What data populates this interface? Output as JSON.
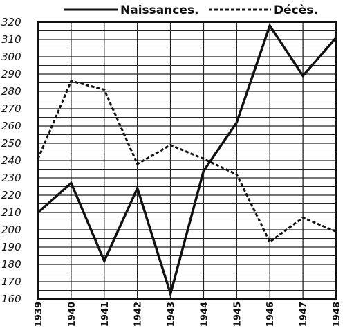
{
  "chart_data": {
    "type": "line",
    "x": [
      "1939",
      "1940",
      "1941",
      "1942",
      "1943",
      "1944",
      "1945",
      "1946",
      "1947",
      "1948"
    ],
    "series": [
      {
        "name": "Naissances.",
        "style": "solid",
        "values": [
          210,
          227,
          182,
          224,
          163,
          234,
          262,
          318,
          289,
          311
        ]
      },
      {
        "name": "Décès.",
        "style": "dashed",
        "values": [
          241,
          286,
          281,
          238,
          249,
          241,
          232,
          193,
          207,
          199
        ]
      }
    ],
    "ylim": [
      160,
      320
    ],
    "ytick_labels": [
      "160",
      "170",
      "180",
      "190",
      "200",
      "210",
      "220",
      "230",
      "240",
      "250",
      "260",
      "270",
      "280",
      "290",
      "300",
      "310",
      "320"
    ],
    "minor_grid_step": 5,
    "grid": true,
    "legend_position": "top",
    "colors": {
      "line": "#111111",
      "grid": "#222222",
      "background": "#ffffff"
    }
  }
}
